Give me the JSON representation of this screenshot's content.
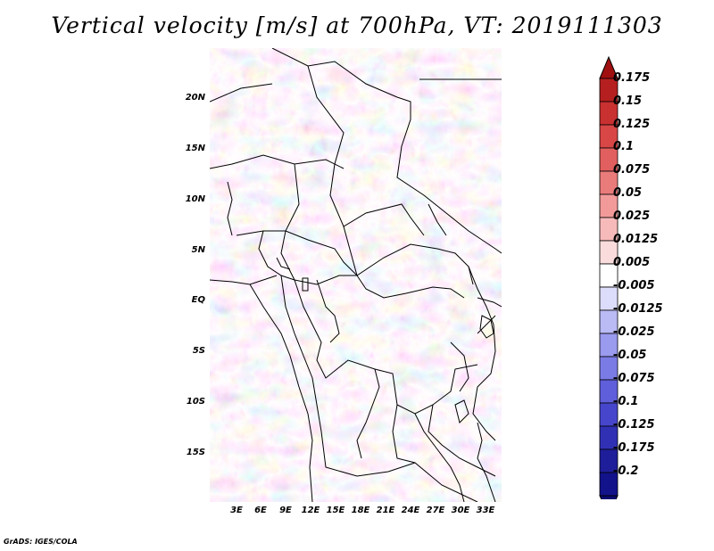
{
  "title": "Vertical velocity [m/s] at 700hPa, VT: 2019111303",
  "credit": "GrADS: IGES/COLA",
  "axes": {
    "lat_ticks": [
      "20N",
      "15N",
      "10N",
      "5N",
      "EQ",
      "5S",
      "10S",
      "15S"
    ],
    "lon_ticks": [
      "3E",
      "6E",
      "9E",
      "12E",
      "15E",
      "18E",
      "21E",
      "24E",
      "27E",
      "30E",
      "33E"
    ]
  },
  "colorbar": {
    "labels": [
      "0.175",
      "0.15",
      "0.125",
      "0.1",
      "0.075",
      "0.05",
      "0.025",
      "0.0125",
      "0.005",
      "-0.005",
      "-0.0125",
      "-0.025",
      "-0.05",
      "-0.075",
      "-0.1",
      "-0.125",
      "-0.175",
      "-0.2"
    ],
    "colors": [
      "#a01010",
      "#b61f1f",
      "#c93030",
      "#d84646",
      "#e25f5f",
      "#ea7b7b",
      "#f29a9a",
      "#f7baba",
      "#fbdcdc",
      "#ffffff",
      "#dcdcfb",
      "#babaf5",
      "#9a9aef",
      "#7b7be6",
      "#5f5fdb",
      "#4646cc",
      "#3030b5",
      "#1e1e9a",
      "#12128a",
      "#0a0a70"
    ]
  },
  "colors": {
    "positive": "#e86a6a",
    "negative": "#6a6ae0"
  }
}
